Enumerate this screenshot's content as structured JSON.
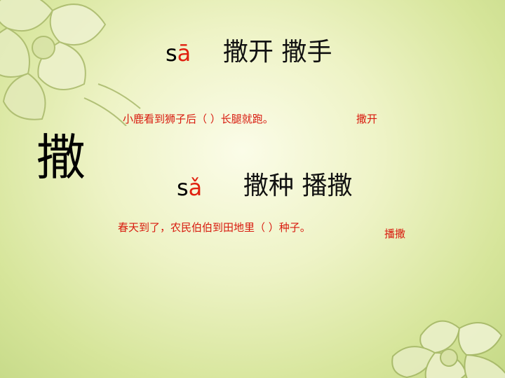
{
  "main_character": "撒",
  "sections": [
    {
      "pinyin_initial": "s",
      "pinyin_vowel": "ā",
      "words": "撒开  撒手",
      "sentence": "小鹿看到狮子后（      ）长腿就跑。",
      "answer": "撒开"
    },
    {
      "pinyin_initial": "s",
      "pinyin_vowel": "ǎ",
      "words": "撒种  播撒",
      "sentence": "春天到了，农民伯伯到田地里（      ）种子。",
      "answer": "播撒"
    }
  ],
  "decorations": [
    "flower-top-left",
    "flower-bottom-right"
  ],
  "colors": {
    "tone_mark": "#e0200f",
    "sentence_text": "#d81a0e",
    "background_center": "#fbfce8",
    "background_edge": "#c5d987"
  }
}
